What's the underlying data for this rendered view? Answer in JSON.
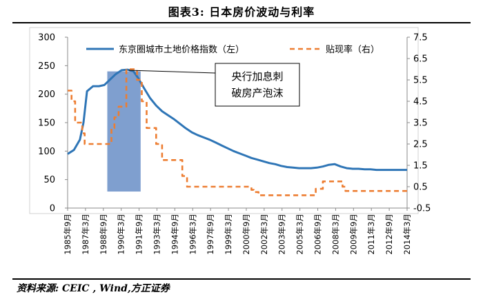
{
  "figure": {
    "title": "图表3:    日本房价波动与利率",
    "source": "资料来源: CEIC , Wind,方正证券"
  },
  "colors": {
    "land_index": "#2E75B6",
    "discount_rate": "#ED7D31",
    "highlight": "#7F9FCF"
  },
  "chart_data": {
    "type": "line",
    "x_tick_labels": [
      "1985年9月",
      "1987年3月",
      "1988年9月",
      "1990年3月",
      "1991年9月",
      "1993年3月",
      "1994年9月",
      "1996年3月",
      "1997年9月",
      "1999年3月",
      "2000年9月",
      "2002年3月",
      "2003年9月",
      "2005年3月",
      "2006年9月",
      "2008年3月",
      "2009年9月",
      "2011年3月",
      "2012年9月",
      "2014年3月"
    ],
    "x_range": [
      1985.67,
      2014.17
    ],
    "y_left": {
      "min": 0,
      "max": 300,
      "ticks": [
        "0",
        "50",
        "100",
        "150",
        "200",
        "250",
        "300"
      ]
    },
    "y_right": {
      "min": -0.5,
      "max": 7.5,
      "ticks": [
        "-0.5",
        "0.5",
        "1.5",
        "2.5",
        "3.5",
        "4.5",
        "5.5",
        "6.5",
        "7.5"
      ]
    },
    "series": [
      {
        "name": "东京圈城市土地价格指数（左）",
        "axis": "left",
        "style": "solid",
        "points": [
          [
            1985.67,
            95
          ],
          [
            1986.2,
            102
          ],
          [
            1986.7,
            120
          ],
          [
            1987.0,
            150
          ],
          [
            1987.3,
            205
          ],
          [
            1987.8,
            214
          ],
          [
            1988.3,
            214
          ],
          [
            1988.75,
            216
          ],
          [
            1989.2,
            225
          ],
          [
            1989.7,
            235
          ],
          [
            1990.2,
            242
          ],
          [
            1990.7,
            243
          ],
          [
            1991.2,
            240
          ],
          [
            1991.6,
            228
          ],
          [
            1992.1,
            210
          ],
          [
            1992.6,
            193
          ],
          [
            1993.1,
            180
          ],
          [
            1993.6,
            170
          ],
          [
            1994.1,
            163
          ],
          [
            1994.6,
            156
          ],
          [
            1995.1,
            148
          ],
          [
            1995.6,
            140
          ],
          [
            1996.1,
            133
          ],
          [
            1996.6,
            128
          ],
          [
            1997.1,
            124
          ],
          [
            1997.6,
            120
          ],
          [
            1998.1,
            115
          ],
          [
            1998.6,
            110
          ],
          [
            1999.1,
            105
          ],
          [
            1999.6,
            100
          ],
          [
            2000.1,
            96
          ],
          [
            2000.6,
            92
          ],
          [
            2001.1,
            88
          ],
          [
            2001.6,
            85
          ],
          [
            2002.1,
            82
          ],
          [
            2002.6,
            79
          ],
          [
            2003.1,
            77
          ],
          [
            2003.6,
            74
          ],
          [
            2004.1,
            72
          ],
          [
            2004.6,
            71
          ],
          [
            2005.1,
            70
          ],
          [
            2005.6,
            70
          ],
          [
            2006.1,
            70
          ],
          [
            2006.6,
            71
          ],
          [
            2007.1,
            73
          ],
          [
            2007.6,
            76
          ],
          [
            2008.1,
            77
          ],
          [
            2008.6,
            73
          ],
          [
            2009.1,
            70
          ],
          [
            2009.6,
            69
          ],
          [
            2010.1,
            69
          ],
          [
            2010.6,
            68
          ],
          [
            2011.1,
            68
          ],
          [
            2011.6,
            67
          ],
          [
            2012.1,
            67
          ],
          [
            2012.6,
            67
          ],
          [
            2013.1,
            67
          ],
          [
            2013.6,
            67
          ],
          [
            2014.17,
            67
          ]
        ]
      },
      {
        "name": "贴现率（右）",
        "axis": "right",
        "style": "dashed",
        "points": [
          [
            1985.67,
            5.0
          ],
          [
            1986.0,
            5.0
          ],
          [
            1986.0,
            4.5
          ],
          [
            1986.3,
            4.5
          ],
          [
            1986.3,
            3.5
          ],
          [
            1986.9,
            3.5
          ],
          [
            1986.9,
            3.0
          ],
          [
            1987.1,
            3.0
          ],
          [
            1987.1,
            2.5
          ],
          [
            1989.35,
            2.5
          ],
          [
            1989.35,
            3.25
          ],
          [
            1989.6,
            3.25
          ],
          [
            1989.6,
            3.75
          ],
          [
            1989.95,
            3.75
          ],
          [
            1989.95,
            4.25
          ],
          [
            1990.6,
            4.25
          ],
          [
            1990.6,
            6.0
          ],
          [
            1991.5,
            6.0
          ],
          [
            1991.5,
            5.5
          ],
          [
            1991.9,
            5.5
          ],
          [
            1991.9,
            4.5
          ],
          [
            1992.3,
            4.5
          ],
          [
            1992.3,
            3.25
          ],
          [
            1993.1,
            3.25
          ],
          [
            1993.1,
            2.5
          ],
          [
            1993.6,
            2.5
          ],
          [
            1993.6,
            1.75
          ],
          [
            1995.3,
            1.75
          ],
          [
            1995.3,
            1.0
          ],
          [
            1995.7,
            1.0
          ],
          [
            1995.7,
            0.5
          ],
          [
            2001.1,
            0.5
          ],
          [
            2001.1,
            0.35
          ],
          [
            2001.3,
            0.35
          ],
          [
            2001.3,
            0.25
          ],
          [
            2001.7,
            0.25
          ],
          [
            2001.7,
            0.1
          ],
          [
            2006.5,
            0.1
          ],
          [
            2006.5,
            0.4
          ],
          [
            2007.1,
            0.4
          ],
          [
            2007.1,
            0.75
          ],
          [
            2008.75,
            0.75
          ],
          [
            2008.75,
            0.5
          ],
          [
            2009.0,
            0.5
          ],
          [
            2009.0,
            0.3
          ],
          [
            2014.17,
            0.3
          ]
        ]
      }
    ],
    "highlight": {
      "x_start": 1989.0,
      "x_end": 1991.8,
      "y_top": 240,
      "y_bottom": 29
    },
    "annotation": {
      "lines": [
        "央行加息刺",
        "破房产泡沫"
      ],
      "point_x": 1990.8,
      "point_y": 242
    },
    "legend": {
      "position": "top",
      "entries": [
        "东京圈城市土地价格指数（左）",
        "贴现率（右）"
      ]
    },
    "grid": false
  }
}
